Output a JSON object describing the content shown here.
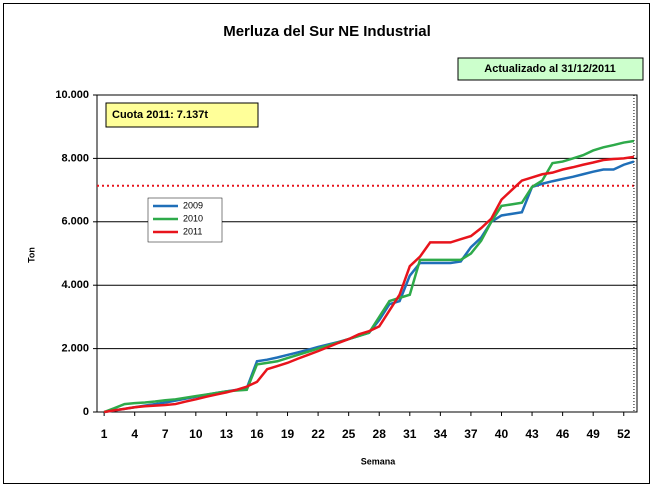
{
  "chart_data": {
    "type": "line",
    "title": "Merluza del Sur NE Industrial",
    "update_note": "Actualizado al 31/12/2011",
    "quota_note": "Cuota 2011: 7.137t",
    "quota_line": 7137,
    "end_line": 53,
    "x_label": "Semana",
    "y_label": "Ton",
    "x": [
      1,
      2,
      3,
      4,
      5,
      6,
      7,
      8,
      9,
      10,
      11,
      12,
      13,
      14,
      15,
      16,
      17,
      18,
      19,
      20,
      21,
      22,
      23,
      24,
      25,
      26,
      27,
      28,
      29,
      30,
      31,
      32,
      33,
      34,
      35,
      36,
      37,
      38,
      39,
      40,
      41,
      42,
      43,
      44,
      45,
      46,
      47,
      48,
      49,
      50,
      51,
      52,
      53
    ],
    "xlim": [
      0.3,
      53.3
    ],
    "xticks": [
      1,
      4,
      7,
      10,
      13,
      16,
      19,
      22,
      25,
      28,
      31,
      34,
      37,
      40,
      43,
      46,
      49,
      52
    ],
    "ylim": [
      0,
      10000
    ],
    "yticks": [
      0,
      {
        "value": 2000,
        "label": "2.000"
      },
      {
        "value": 4000,
        "label": "4.000"
      },
      {
        "value": 6000,
        "label": "6.000"
      },
      {
        "value": 8000,
        "label": "8.000"
      },
      {
        "value": 10000,
        "label": "10.000"
      }
    ],
    "grid": true,
    "legend": "upper left",
    "series": [
      {
        "name": "2009",
        "color": "#1f6fb8",
        "values": [
          0,
          50,
          100,
          150,
          200,
          250,
          300,
          360,
          420,
          480,
          540,
          600,
          650,
          700,
          750,
          1600,
          1650,
          1720,
          1800,
          1880,
          1960,
          2050,
          2130,
          2210,
          2300,
          2400,
          2500,
          2900,
          3400,
          3500,
          4300,
          4700,
          4700,
          4700,
          4700,
          4750,
          5200,
          5500,
          6000,
          6200,
          6250,
          6300,
          7100,
          7200,
          7280,
          7350,
          7420,
          7500,
          7580,
          7650,
          7650,
          7800,
          7900
        ]
      },
      {
        "name": "2010",
        "color": "#2eaa4a",
        "values": [
          0,
          120,
          250,
          280,
          300,
          330,
          370,
          400,
          450,
          500,
          550,
          600,
          650,
          680,
          700,
          1500,
          1550,
          1600,
          1700,
          1800,
          1900,
          2000,
          2100,
          2200,
          2300,
          2400,
          2500,
          3000,
          3500,
          3600,
          3700,
          4800,
          4800,
          4800,
          4800,
          4800,
          5000,
          5400,
          6000,
          6500,
          6550,
          6600,
          7100,
          7300,
          7850,
          7900,
          8000,
          8100,
          8250,
          8350,
          8420,
          8500,
          8550
        ]
      },
      {
        "name": "2011",
        "color": "#e8141c",
        "values": [
          0,
          50,
          100,
          150,
          180,
          200,
          220,
          250,
          330,
          400,
          480,
          550,
          620,
          700,
          800,
          950,
          1350,
          1450,
          1550,
          1680,
          1800,
          1920,
          2050,
          2180,
          2300,
          2450,
          2550,
          2700,
          3200,
          3700,
          4600,
          4900,
          5350,
          5350,
          5350,
          5450,
          5550,
          5800,
          6100,
          6700,
          7000,
          7300,
          7400,
          7500,
          7550,
          7650,
          7720,
          7800,
          7870,
          7950,
          7980,
          8000,
          8050
        ]
      }
    ]
  }
}
